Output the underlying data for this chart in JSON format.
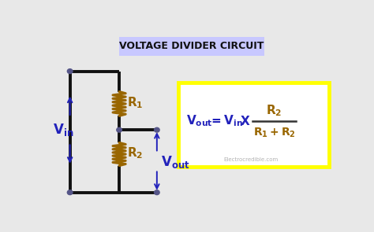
{
  "title": "VOLTAGE DIVIDER CIRCUIT",
  "title_bg": "#c8c8ff",
  "title_color": "#111111",
  "bg_color": "#e8e8e8",
  "circuit_color": "#111111",
  "node_color": "#555588",
  "vin_color": "#2222bb",
  "r_color": "#996600",
  "vout_color": "#2222bb",
  "formula_box_color": "#ffff00",
  "formula_text_color": "#2222bb",
  "formula_r_color": "#996600",
  "watermark": "Electrocredible.com",
  "xlim": [
    0,
    10
  ],
  "ylim": [
    0,
    7
  ]
}
